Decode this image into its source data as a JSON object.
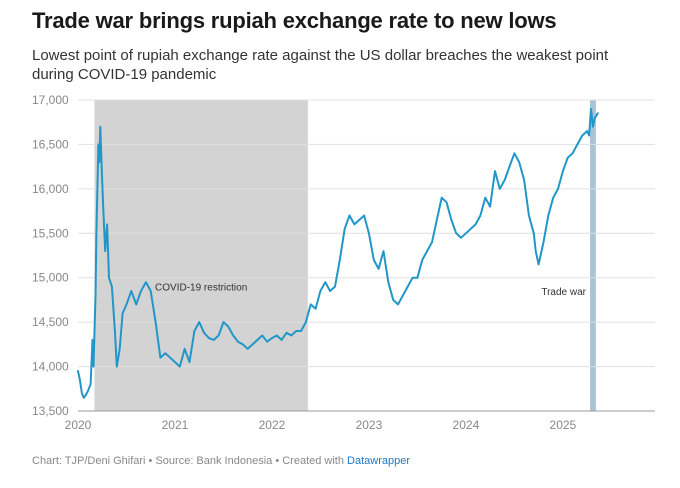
{
  "header": {
    "title": "Trade war brings rupiah exchange rate to new lows",
    "subtitle": "Lowest point of rupiah exchange rate against the US dollar breaches the weakest point during COVID-19 pandemic"
  },
  "footer": {
    "text": "Chart: TJP/Deni Ghifari • Source: Bank Indonesia • Created with",
    "link": "Datawrapper"
  },
  "colors": {
    "line": "#2196c9",
    "covid_band": "#d3d3d3",
    "tradewar_band": "#a9c4d6",
    "grid": "#e0e0e0"
  },
  "chart_data": {
    "type": "line",
    "xlim": [
      2020.0,
      2025.95
    ],
    "ylim": [
      13500,
      17000
    ],
    "y_ticks": [
      "17,000",
      "16,500",
      "16,000",
      "15,500",
      "15,000",
      "14,500",
      "14,000",
      "13,500"
    ],
    "y_tick_values": [
      17000,
      16500,
      16000,
      15500,
      15000,
      14500,
      14000,
      13500
    ],
    "x_ticks": [
      "2020",
      "2021",
      "2022",
      "2023",
      "2024",
      "2025"
    ],
    "x_tick_values": [
      2020,
      2021,
      2022,
      2023,
      2024,
      2025
    ],
    "annotations": [
      {
        "label": "COVID-19 restriction",
        "range": [
          2020.17,
          2022.37
        ]
      },
      {
        "label": "Trade war",
        "range": [
          2025.28,
          2025.34
        ]
      }
    ],
    "series": [
      {
        "points": [
          [
            2020.0,
            13950
          ],
          [
            2020.02,
            13850
          ],
          [
            2020.04,
            13700
          ],
          [
            2020.06,
            13650
          ],
          [
            2020.08,
            13680
          ],
          [
            2020.1,
            13720
          ],
          [
            2020.13,
            13800
          ],
          [
            2020.15,
            14300
          ],
          [
            2020.16,
            14000
          ],
          [
            2020.18,
            14800
          ],
          [
            2020.19,
            15500
          ],
          [
            2020.21,
            16500
          ],
          [
            2020.22,
            16300
          ],
          [
            2020.23,
            16700
          ],
          [
            2020.245,
            16200
          ],
          [
            2020.26,
            15800
          ],
          [
            2020.28,
            15300
          ],
          [
            2020.3,
            15600
          ],
          [
            2020.32,
            15000
          ],
          [
            2020.35,
            14900
          ],
          [
            2020.38,
            14400
          ],
          [
            2020.4,
            14000
          ],
          [
            2020.43,
            14200
          ],
          [
            2020.46,
            14600
          ],
          [
            2020.5,
            14700
          ],
          [
            2020.55,
            14850
          ],
          [
            2020.6,
            14700
          ],
          [
            2020.65,
            14850
          ],
          [
            2020.7,
            14950
          ],
          [
            2020.75,
            14850
          ],
          [
            2020.8,
            14500
          ],
          [
            2020.85,
            14100
          ],
          [
            2020.9,
            14150
          ],
          [
            2020.95,
            14100
          ],
          [
            2021.0,
            14050
          ],
          [
            2021.05,
            14000
          ],
          [
            2021.1,
            14200
          ],
          [
            2021.15,
            14050
          ],
          [
            2021.2,
            14400
          ],
          [
            2021.25,
            14500
          ],
          [
            2021.3,
            14380
          ],
          [
            2021.35,
            14320
          ],
          [
            2021.4,
            14300
          ],
          [
            2021.45,
            14350
          ],
          [
            2021.5,
            14500
          ],
          [
            2021.55,
            14450
          ],
          [
            2021.6,
            14350
          ],
          [
            2021.65,
            14280
          ],
          [
            2021.7,
            14250
          ],
          [
            2021.75,
            14200
          ],
          [
            2021.8,
            14250
          ],
          [
            2021.85,
            14300
          ],
          [
            2021.9,
            14350
          ],
          [
            2021.95,
            14280
          ],
          [
            2022.0,
            14320
          ],
          [
            2022.05,
            14350
          ],
          [
            2022.1,
            14300
          ],
          [
            2022.15,
            14380
          ],
          [
            2022.2,
            14350
          ],
          [
            2022.25,
            14400
          ],
          [
            2022.3,
            14400
          ],
          [
            2022.35,
            14500
          ],
          [
            2022.4,
            14700
          ],
          [
            2022.45,
            14650
          ],
          [
            2022.5,
            14850
          ],
          [
            2022.55,
            14950
          ],
          [
            2022.6,
            14850
          ],
          [
            2022.65,
            14900
          ],
          [
            2022.7,
            15200
          ],
          [
            2022.75,
            15550
          ],
          [
            2022.8,
            15700
          ],
          [
            2022.85,
            15600
          ],
          [
            2022.9,
            15650
          ],
          [
            2022.95,
            15700
          ],
          [
            2023.0,
            15500
          ],
          [
            2023.05,
            15200
          ],
          [
            2023.1,
            15100
          ],
          [
            2023.15,
            15300
          ],
          [
            2023.2,
            14950
          ],
          [
            2023.25,
            14750
          ],
          [
            2023.3,
            14700
          ],
          [
            2023.35,
            14800
          ],
          [
            2023.4,
            14900
          ],
          [
            2023.45,
            15000
          ],
          [
            2023.5,
            15000
          ],
          [
            2023.55,
            15200
          ],
          [
            2023.6,
            15300
          ],
          [
            2023.65,
            15400
          ],
          [
            2023.7,
            15650
          ],
          [
            2023.75,
            15900
          ],
          [
            2023.8,
            15850
          ],
          [
            2023.85,
            15650
          ],
          [
            2023.9,
            15500
          ],
          [
            2023.95,
            15450
          ],
          [
            2024.0,
            15500
          ],
          [
            2024.05,
            15550
          ],
          [
            2024.1,
            15600
          ],
          [
            2024.15,
            15700
          ],
          [
            2024.2,
            15900
          ],
          [
            2024.25,
            15800
          ],
          [
            2024.3,
            16200
          ],
          [
            2024.35,
            16000
          ],
          [
            2024.4,
            16100
          ],
          [
            2024.45,
            16250
          ],
          [
            2024.5,
            16400
          ],
          [
            2024.55,
            16300
          ],
          [
            2024.6,
            16100
          ],
          [
            2024.65,
            15700
          ],
          [
            2024.7,
            15500
          ],
          [
            2024.72,
            15300
          ],
          [
            2024.75,
            15150
          ],
          [
            2024.8,
            15400
          ],
          [
            2024.85,
            15700
          ],
          [
            2024.9,
            15900
          ],
          [
            2024.95,
            16000
          ],
          [
            2025.0,
            16200
          ],
          [
            2025.05,
            16350
          ],
          [
            2025.1,
            16400
          ],
          [
            2025.15,
            16500
          ],
          [
            2025.2,
            16600
          ],
          [
            2025.25,
            16650
          ],
          [
            2025.27,
            16600
          ],
          [
            2025.29,
            16900
          ],
          [
            2025.31,
            16700
          ],
          [
            2025.33,
            16800
          ],
          [
            2025.36,
            16850
          ]
        ]
      }
    ]
  }
}
